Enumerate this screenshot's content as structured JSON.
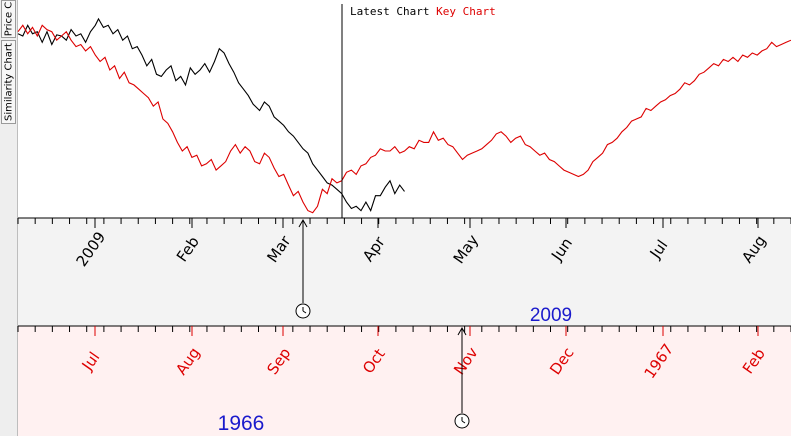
{
  "side_tabs": [
    {
      "label": "Price C"
    },
    {
      "label": "Similarity Chart"
    }
  ],
  "legend": {
    "latest_label": "Latest Chart",
    "key_label": "Key Chart"
  },
  "colors": {
    "latest": "#000000",
    "key": "#dd0000",
    "year_text": "#1a1acc",
    "top_band": "#f3f3f3",
    "bottom_band": "#fff1f1"
  },
  "icons": [
    "clock-icon",
    "arrow-up-icon"
  ],
  "chart_data": {
    "type": "line",
    "y_axis_visible": false,
    "grid": false,
    "legend_position": "top-center",
    "axes": [
      {
        "name": "latest",
        "year_label": "2009",
        "tick_labels": [
          "2009",
          "Feb",
          "Mar",
          "Apr",
          "May",
          "Jun",
          "Jul",
          "Aug"
        ]
      },
      {
        "name": "key",
        "year_label": "1966",
        "tick_labels": [
          "Jul",
          "Aug",
          "Sep",
          "Oct",
          "Nov",
          "Dec",
          "1967",
          "Feb"
        ]
      }
    ],
    "series": [
      {
        "name": "Latest Chart",
        "color": "#000000",
        "x": [
          0,
          0.03,
          0.06,
          0.09,
          0.12,
          0.15,
          0.18,
          0.21,
          0.24,
          0.27,
          0.3,
          0.33,
          0.36,
          0.39,
          0.42,
          0.45,
          0.48,
          0.5,
          0.53,
          0.56,
          0.59,
          0.62,
          0.65,
          0.68,
          0.71,
          0.74,
          0.77,
          0.8,
          0.83,
          0.86,
          0.89,
          0.92,
          0.95,
          0.98,
          1.01,
          1.04,
          1.07,
          1.1,
          1.13,
          1.16,
          1.19,
          1.22,
          1.25,
          1.28,
          1.31,
          1.34,
          1.37,
          1.4,
          1.43,
          1.46,
          1.5,
          1.53,
          1.56,
          1.59,
          1.62,
          1.65,
          1.68,
          1.71,
          1.74,
          1.77,
          1.8,
          1.83,
          1.86,
          1.89,
          1.92,
          1.95,
          1.98,
          2.01,
          2.04,
          2.07,
          2.1,
          2.13,
          2.16,
          2.19,
          2.22,
          2.25,
          2.28,
          2.31,
          2.34,
          2.37,
          2.4
        ],
        "values": [
          72,
          70,
          80,
          72,
          74,
          64,
          74,
          62,
          71,
          70,
          66,
          76,
          70,
          72,
          64,
          74,
          80,
          86,
          78,
          80,
          72,
          76,
          66,
          70,
          58,
          60,
          52,
          42,
          48,
          34,
          32,
          38,
          42,
          28,
          32,
          24,
          40,
          34,
          38,
          44,
          36,
          46,
          58,
          54,
          44,
          36,
          26,
          20,
          14,
          6,
          0,
          8,
          4,
          -6,
          -10,
          -14,
          -20,
          -24,
          -30,
          -36,
          -40,
          -50,
          -56,
          -62,
          -68,
          -70,
          -74,
          -78,
          -86,
          -92,
          -90,
          -94,
          -86,
          -94,
          -80,
          -80,
          -72,
          -66,
          -78,
          -70,
          -76
        ]
      },
      {
        "name": "Key Chart",
        "color": "#dd0000",
        "x": [
          0,
          0.03,
          0.06,
          0.09,
          0.12,
          0.15,
          0.18,
          0.21,
          0.24,
          0.27,
          0.3,
          0.33,
          0.36,
          0.39,
          0.42,
          0.45,
          0.48,
          0.51,
          0.54,
          0.57,
          0.6,
          0.63,
          0.66,
          0.69,
          0.72,
          0.75,
          0.78,
          0.81,
          0.84,
          0.87,
          0.9,
          0.93,
          0.96,
          0.99,
          1.02,
          1.05,
          1.08,
          1.11,
          1.14,
          1.17,
          1.2,
          1.23,
          1.26,
          1.29,
          1.32,
          1.35,
          1.38,
          1.41,
          1.44,
          1.47,
          1.5,
          1.53,
          1.56,
          1.59,
          1.62,
          1.65,
          1.68,
          1.71,
          1.74,
          1.77,
          1.8,
          1.83,
          1.86,
          1.89,
          1.92,
          1.95,
          1.98,
          2.01,
          2.04,
          2.07,
          2.1,
          2.13,
          2.16,
          2.19,
          2.22,
          2.25,
          2.28,
          2.31,
          2.34,
          2.37,
          2.4,
          2.43,
          2.46,
          2.49,
          2.52,
          2.55,
          2.58,
          2.61,
          2.64,
          2.67,
          2.7,
          2.73,
          2.76,
          2.79,
          2.82,
          2.85,
          2.88,
          2.91,
          2.94,
          2.97,
          3.0,
          3.03,
          3.06,
          3.09,
          3.12,
          3.15,
          3.18,
          3.21,
          3.24,
          3.27,
          3.3,
          3.33,
          3.36,
          3.39,
          3.42,
          3.45,
          3.48,
          3.51,
          3.54,
          3.57,
          3.6,
          3.63,
          3.66,
          3.69,
          3.72,
          3.75,
          3.78,
          3.81,
          3.84,
          3.87,
          3.9,
          3.93,
          3.96,
          3.99,
          4.02,
          4.05,
          4.08,
          4.11,
          4.14,
          4.17,
          4.2,
          4.23,
          4.26,
          4.29,
          4.32,
          4.35,
          4.38,
          4.41,
          4.44,
          4.47,
          4.5,
          4.53,
          4.56,
          4.59,
          4.62,
          4.65,
          4.68,
          4.71,
          4.74,
          4.77,
          4.8
        ],
        "values": [
          74,
          80,
          72,
          78,
          70,
          80,
          76,
          74,
          66,
          70,
          74,
          66,
          60,
          62,
          56,
          60,
          52,
          46,
          50,
          38,
          42,
          30,
          36,
          26,
          24,
          20,
          16,
          12,
          4,
          8,
          -8,
          -12,
          -20,
          -30,
          -38,
          -34,
          -44,
          -42,
          -52,
          -50,
          -46,
          -56,
          -52,
          -48,
          -38,
          -32,
          -40,
          -34,
          -38,
          -48,
          -50,
          -40,
          -44,
          -54,
          -62,
          -60,
          -70,
          -80,
          -76,
          -86,
          -94,
          -96,
          -90,
          -74,
          -78,
          -64,
          -68,
          -66,
          -58,
          -56,
          -60,
          -52,
          -50,
          -44,
          -42,
          -36,
          -38,
          -38,
          -34,
          -40,
          -38,
          -34,
          -36,
          -28,
          -30,
          -30,
          -20,
          -28,
          -26,
          -32,
          -34,
          -40,
          -46,
          -42,
          -40,
          -38,
          -36,
          -32,
          -28,
          -22,
          -20,
          -24,
          -30,
          -26,
          -24,
          -32,
          -34,
          -38,
          -42,
          -40,
          -46,
          -48,
          -52,
          -56,
          -58,
          -60,
          -62,
          -60,
          -56,
          -48,
          -44,
          -40,
          -32,
          -30,
          -26,
          -20,
          -16,
          -10,
          -8,
          -6,
          2,
          0,
          4,
          8,
          10,
          14,
          16,
          20,
          26,
          24,
          28,
          34,
          36,
          40,
          44,
          42,
          48,
          46,
          50,
          46,
          52,
          50,
          54,
          52,
          56,
          58,
          64,
          60,
          62,
          64,
          66
        ]
      }
    ]
  }
}
